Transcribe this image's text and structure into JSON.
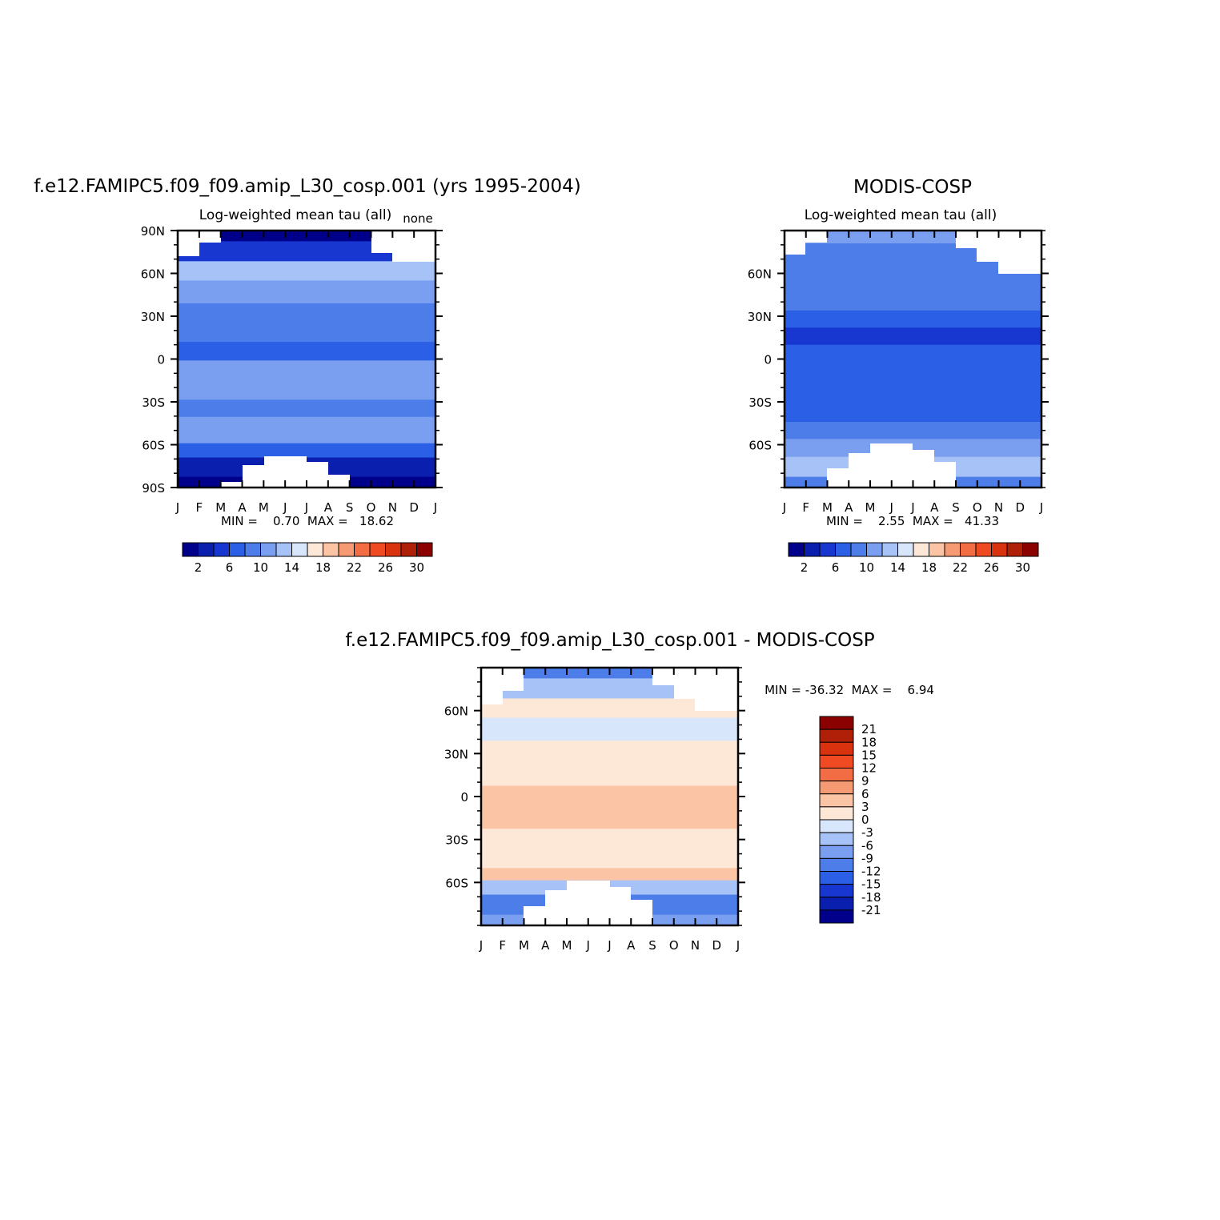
{
  "chart_data": [
    {
      "type": "heatmap",
      "title": "f.e12.FAMIPC5.f09_f09.amip_L30_cosp.001 (yrs 1995-2004)",
      "subtitle": "Log-weighted mean tau (all)",
      "units_label": "none",
      "x_tick_labels": [
        "J",
        "F",
        "M",
        "A",
        "M",
        "J",
        "J",
        "A",
        "S",
        "O",
        "N",
        "D",
        "J"
      ],
      "y_tick_labels": [
        "90N",
        "60N",
        "30N",
        "0",
        "30S",
        "60S",
        "90S"
      ],
      "y_ticks": [
        90,
        60,
        30,
        0,
        -30,
        -60,
        -90
      ],
      "ylim": [
        -90,
        90
      ],
      "stats_text": "MIN =    0.70  MAX =   18.62",
      "min": 0.7,
      "max": 18.62,
      "colorbar": {
        "orientation": "horizontal",
        "labels": [
          "2",
          "6",
          "10",
          "14",
          "18",
          "22",
          "26",
          "30"
        ],
        "colors": [
          "#00008b",
          "#0b1fae",
          "#1737d0",
          "#2a5fe6",
          "#4d7de8",
          "#7a9ff0",
          "#a6c2f7",
          "#d7e6fb",
          "#fde7d6",
          "#fbc4a5",
          "#f69a73",
          "#f26d44",
          "#f04a22",
          "#d8320e",
          "#b02008",
          "#8b0000"
        ]
      },
      "rows": [
        {
          "lat": 90,
          "value": 1.5
        },
        {
          "lat": 75,
          "value": 4.5
        },
        {
          "lat": 62,
          "value": 12.5
        },
        {
          "lat": 48,
          "value": 11.0
        },
        {
          "lat": 30,
          "value": 9.5
        },
        {
          "lat": 18,
          "value": 8.5
        },
        {
          "lat": 6,
          "value": 7.8
        },
        {
          "lat": -8,
          "value": 10.5
        },
        {
          "lat": -22,
          "value": 10.0
        },
        {
          "lat": -35,
          "value": 9.0
        },
        {
          "lat": -46,
          "value": 11.0
        },
        {
          "lat": -55,
          "value": 10.5
        },
        {
          "lat": -63,
          "value": 6.0
        },
        {
          "lat": -75,
          "value": 2.0
        },
        {
          "lat": -90,
          "value": 1.0
        }
      ]
    },
    {
      "type": "heatmap",
      "title": "MODIS-COSP",
      "subtitle": "Log-weighted mean tau (all)",
      "x_tick_labels": [
        "J",
        "F",
        "M",
        "A",
        "M",
        "J",
        "J",
        "A",
        "S",
        "O",
        "N",
        "D",
        "J"
      ],
      "y_tick_labels": [
        "60N",
        "30N",
        "0",
        "30S",
        "60S"
      ],
      "y_ticks": [
        60,
        30,
        0,
        -30,
        -60
      ],
      "ylim": [
        -90,
        90
      ],
      "stats_text": "MIN =    2.55  MAX =   41.33",
      "min": 2.55,
      "max": 41.33,
      "colorbar": {
        "orientation": "horizontal",
        "labels": [
          "2",
          "6",
          "10",
          "14",
          "18",
          "22",
          "26",
          "30"
        ],
        "colors": [
          "#00008b",
          "#0b1fae",
          "#1737d0",
          "#2a5fe6",
          "#4d7de8",
          "#7a9ff0",
          "#a6c2f7",
          "#d7e6fb",
          "#fde7d6",
          "#fbc4a5",
          "#f69a73",
          "#f26d44",
          "#f04a22",
          "#d8320e",
          "#b02008",
          "#8b0000"
        ]
      },
      "rows": [
        {
          "lat": 90,
          "value": 11.5
        },
        {
          "lat": 72,
          "value": 9.0
        },
        {
          "lat": 55,
          "value": 8.5
        },
        {
          "lat": 40,
          "value": 9.0
        },
        {
          "lat": 28,
          "value": 7.5
        },
        {
          "lat": 16,
          "value": 5.5
        },
        {
          "lat": 4,
          "value": 6.5
        },
        {
          "lat": -10,
          "value": 6.5
        },
        {
          "lat": -25,
          "value": 6.5
        },
        {
          "lat": -38,
          "value": 7.0
        },
        {
          "lat": -50,
          "value": 9.5
        },
        {
          "lat": -62,
          "value": 11.0
        },
        {
          "lat": -75,
          "value": 12.5
        },
        {
          "lat": -90,
          "value": 8.5
        }
      ]
    },
    {
      "type": "heatmap",
      "title": "f.e12.FAMIPC5.f09_f09.amip_L30_cosp.001 - MODIS-COSP",
      "x_tick_labels": [
        "J",
        "F",
        "M",
        "A",
        "M",
        "J",
        "J",
        "A",
        "S",
        "O",
        "N",
        "D",
        "J"
      ],
      "y_tick_labels": [
        "60N",
        "30N",
        "0",
        "30S",
        "60S"
      ],
      "y_ticks": [
        60,
        30,
        0,
        -30,
        -60
      ],
      "ylim": [
        -90,
        90
      ],
      "stats_text": "MIN = -36.32  MAX =    6.94",
      "min": -36.32,
      "max": 6.94,
      "colorbar": {
        "orientation": "vertical",
        "labels": [
          "21",
          "18",
          "15",
          "12",
          "9",
          "6",
          "3",
          "0",
          "-3",
          "-6",
          "-9",
          "-12",
          "-15",
          "-18",
          "-21"
        ],
        "colors": [
          "#8b0000",
          "#b02008",
          "#d8320e",
          "#f04a22",
          "#f26d44",
          "#f69a73",
          "#fbc4a5",
          "#fde7d6",
          "#d7e6fb",
          "#a6c2f7",
          "#7a9ff0",
          "#4d7de8",
          "#2a5fe6",
          "#1737d0",
          "#0b1fae",
          "#00008b"
        ]
      },
      "rows": [
        {
          "lat": 90,
          "value": -12.0
        },
        {
          "lat": 75,
          "value": -6.0
        },
        {
          "lat": 62,
          "value": 2.5
        },
        {
          "lat": 48,
          "value": -1.5
        },
        {
          "lat": 30,
          "value": 1.5
        },
        {
          "lat": 15,
          "value": 1.5
        },
        {
          "lat": 0,
          "value": 3.5
        },
        {
          "lat": -15,
          "value": 3.0
        },
        {
          "lat": -30,
          "value": 1.5
        },
        {
          "lat": -45,
          "value": 2.0
        },
        {
          "lat": -55,
          "value": 3.0
        },
        {
          "lat": -62,
          "value": -6.0
        },
        {
          "lat": -75,
          "value": -12.0
        },
        {
          "lat": -90,
          "value": -8.0
        }
      ]
    }
  ]
}
